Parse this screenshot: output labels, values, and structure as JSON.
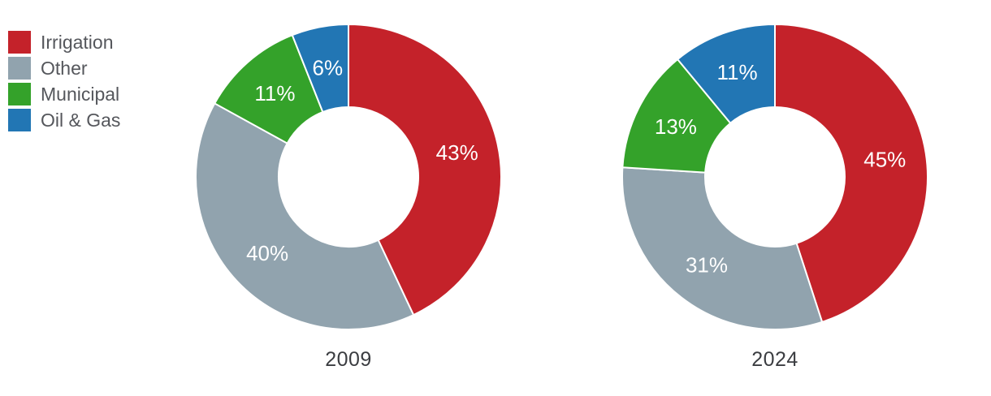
{
  "figure": {
    "background": "#FFFFFF",
    "slice_label_text_color": "#FFFFFF",
    "year_text_color": "#3B3D41",
    "legend_text_color": "#55575C",
    "slice_border_color": "#FFFFFF"
  },
  "palette": {
    "Irrigation": "#C4222A",
    "Other": "#91A3AE",
    "Municipal": "#34A22A",
    "Oil & Gas": "#2276B4"
  },
  "legend": {
    "items": [
      {
        "label": "Irrigation"
      },
      {
        "label": "Other"
      },
      {
        "label": "Municipal"
      },
      {
        "label": "Oil & Gas"
      }
    ]
  },
  "chart_data": [
    {
      "type": "pie",
      "subtype": "donut",
      "title": "2009",
      "categories": [
        "Irrigation",
        "Other",
        "Municipal",
        "Oil & Gas"
      ],
      "values": [
        43,
        40,
        11,
        6
      ],
      "labels": [
        "43%",
        "40%",
        "11%",
        "6%"
      ],
      "unit": "%",
      "start_angle_deg": 0,
      "direction": "clockwise",
      "inner_radius_ratio": 0.457,
      "legend_position": "top-left"
    },
    {
      "type": "pie",
      "subtype": "donut",
      "title": "2024",
      "categories": [
        "Irrigation",
        "Other",
        "Municipal",
        "Oil & Gas"
      ],
      "values": [
        45,
        31,
        13,
        11
      ],
      "labels": [
        "45%",
        "31%",
        "13%",
        "11%"
      ],
      "unit": "%",
      "start_angle_deg": 0,
      "direction": "clockwise",
      "inner_radius_ratio": 0.457,
      "legend_position": "top-left"
    }
  ]
}
